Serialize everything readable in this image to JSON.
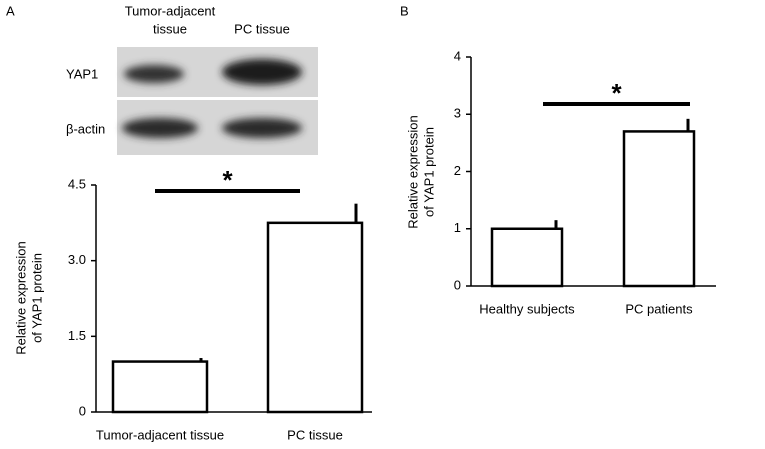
{
  "panel_labels": [
    "A",
    "B"
  ],
  "blot": {
    "columns": [
      [
        "Tumor-adjacent",
        "tissue"
      ],
      "PC tissue"
    ],
    "rows": [
      "YAP1",
      "β-actin"
    ]
  },
  "chart_data": [
    {
      "type": "bar",
      "ylabel": [
        "Relative expression",
        "of YAP1 protein"
      ],
      "categories": [
        "Tumor-adjacent tissue",
        "PC tissue"
      ],
      "values": [
        1.0,
        3.75
      ],
      "errors": [
        0.07,
        0.38
      ],
      "color": "#ffffff",
      "ylim": [
        0,
        4.5
      ],
      "yticks": [
        0,
        1.5,
        {
          "value": 3,
          "label": "3.0"
        },
        4.5
      ],
      "significance": "*"
    },
    {
      "type": "bar",
      "ylabel": [
        "Relative expression",
        "of YAP1 protein"
      ],
      "categories": [
        "Healthy subjects",
        "PC patients"
      ],
      "values": [
        1.0,
        2.7
      ],
      "errors": [
        0.15,
        0.22
      ],
      "color": "#ffffff",
      "ylim": [
        0,
        4
      ],
      "yticks": [
        0,
        1,
        2,
        3,
        4
      ],
      "significance": "*"
    }
  ]
}
